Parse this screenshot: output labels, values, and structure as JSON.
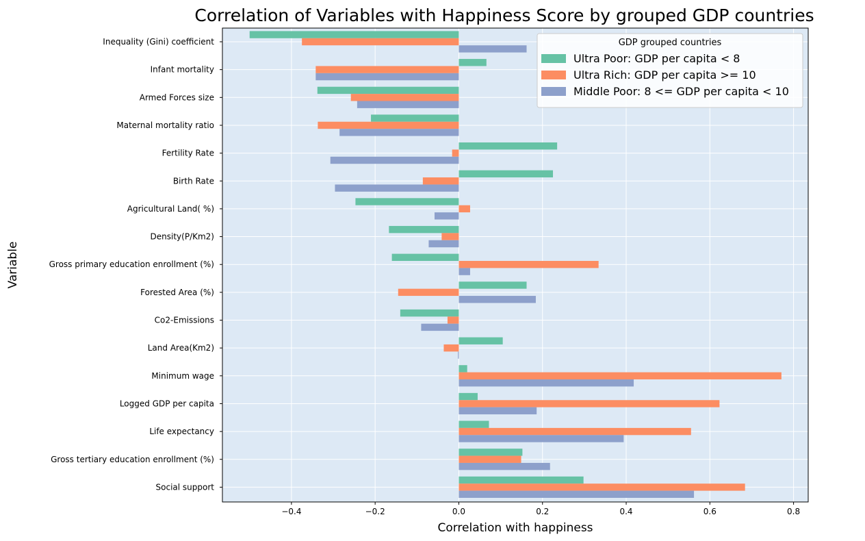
{
  "chart_data": {
    "type": "bar",
    "orientation": "horizontal",
    "title": "Correlation of Variables with Happiness Score by grouped GDP countries",
    "xlabel": "Correlation with happiness",
    "ylabel": "Variable",
    "xlim": [
      -0.565,
      0.835
    ],
    "xticks": [
      -0.4,
      -0.2,
      0.0,
      0.2,
      0.4,
      0.6,
      0.8
    ],
    "xtick_labels": [
      "−0.4",
      "−0.2",
      "0.0",
      "0.2",
      "0.4",
      "0.6",
      "0.8"
    ],
    "grid": true,
    "background": "#dde9f5",
    "categories": [
      "Inequality (Gini) coefficient",
      "Infant mortality",
      "Armed Forces size",
      "Maternal mortality ratio",
      "Fertility Rate",
      "Birth Rate",
      "Agricultural Land( %)",
      "Density(P/Km2)",
      "Gross primary education enrollment (%)",
      "Forested Area (%)",
      "Co2-Emissions",
      "Land Area(Km2)",
      "Minimum wage",
      "Logged GDP per capita",
      "Life expectancy",
      "Gross tertiary education enrollment (%)",
      "Social support"
    ],
    "legend": {
      "title": "GDP grouped countries",
      "position": "top-right"
    },
    "series": [
      {
        "name": "Ultra Poor: GDP per capita < 8",
        "color": "#66c2a5",
        "values": [
          -0.5,
          0.066,
          -0.338,
          -0.21,
          0.235,
          0.225,
          -0.247,
          -0.167,
          -0.16,
          0.162,
          -0.14,
          0.105,
          0.02,
          0.045,
          0.072,
          0.152,
          0.298
        ]
      },
      {
        "name": "Ultra Rich: GDP per capita >= 10",
        "color": "#fc8d62",
        "values": [
          -0.375,
          -0.342,
          -0.258,
          -0.337,
          -0.016,
          -0.086,
          0.027,
          -0.041,
          0.334,
          -0.145,
          -0.027,
          -0.036,
          0.771,
          0.623,
          0.555,
          0.149,
          0.684
        ]
      },
      {
        "name": "Middle Poor: 8 <= GDP per capita < 10",
        "color": "#8da0cb",
        "values": [
          0.162,
          -0.342,
          -0.243,
          -0.285,
          -0.307,
          -0.296,
          -0.058,
          -0.072,
          0.027,
          0.184,
          -0.09,
          -0.002,
          0.418,
          0.186,
          0.394,
          0.218,
          0.562
        ]
      }
    ]
  }
}
